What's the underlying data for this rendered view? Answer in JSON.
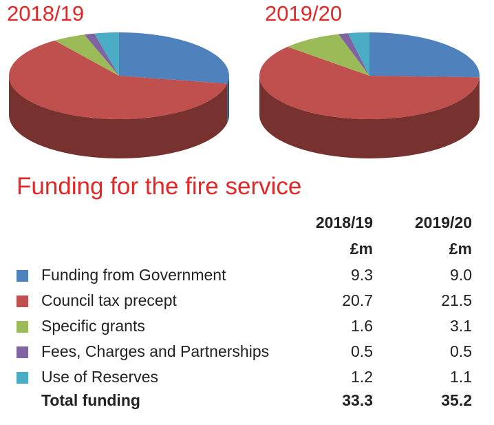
{
  "chart_data": {
    "type": "pie",
    "title": "Funding for the fire service",
    "unit": "£m",
    "categories": [
      "Funding from Government",
      "Council tax precept",
      "Specific grants",
      "Fees, Charges and Partnerships",
      "Use of Reserves"
    ],
    "colors": [
      "#4f81bd",
      "#c0504d",
      "#9bbb59",
      "#8064a2",
      "#4bacc6"
    ],
    "series": [
      {
        "name": "2018/19",
        "values": [
          9.3,
          20.7,
          1.6,
          0.5,
          1.2
        ],
        "total": 33.3
      },
      {
        "name": "2019/20",
        "values": [
          9.0,
          21.5,
          3.1,
          0.5,
          1.1
        ],
        "total": 35.2
      }
    ]
  },
  "table": {
    "col_headers": [
      "2018/19",
      "2019/20"
    ],
    "unit_row": [
      "£m",
      "£m"
    ],
    "rows": [
      {
        "label": "Funding from Government",
        "v1": "9.3",
        "v2": "9.0"
      },
      {
        "label": "Council tax precept",
        "v1": "20.7",
        "v2": "21.5"
      },
      {
        "label": "Specific grants",
        "v1": "1.6",
        "v2": "3.1"
      },
      {
        "label": "Fees, Charges and Partnerships",
        "v1": "0.5",
        "v2": "0.5"
      },
      {
        "label": "Use of Reserves",
        "v1": "1.2",
        "v2": "1.1"
      }
    ],
    "total": {
      "label": "Total funding",
      "v1": "33.3",
      "v2": "35.2"
    }
  }
}
